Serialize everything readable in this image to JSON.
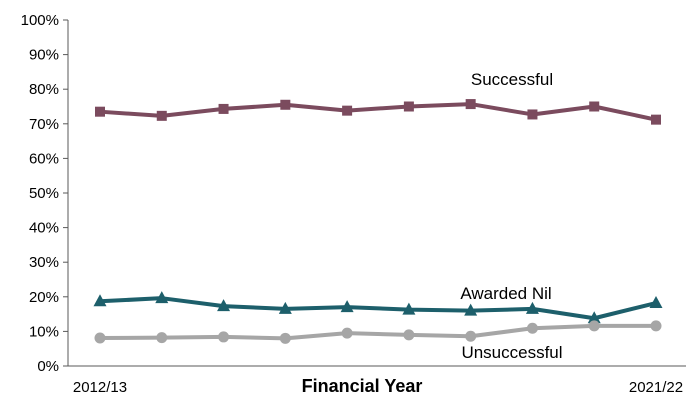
{
  "chart_data": {
    "type": "line",
    "title": "",
    "xlabel": "Financial Year",
    "ylabel": "",
    "x_tick_labels": [
      {
        "index": 0,
        "label": "2012/13"
      },
      {
        "index": 9,
        "label": "2021/22"
      }
    ],
    "y_ticks": [
      "0%",
      "10%",
      "20%",
      "30%",
      "40%",
      "50%",
      "60%",
      "70%",
      "80%",
      "90%",
      "100%"
    ],
    "ylim": [
      0,
      100
    ],
    "grid": false,
    "legend": "none",
    "series": [
      {
        "name": "Successful",
        "color": "#7B4B5E",
        "marker": "square",
        "values": [
          73.5,
          72.3,
          74.3,
          75.5,
          73.8,
          75.0,
          75.7,
          72.7,
          75.0,
          71.2
        ]
      },
      {
        "name": "Awarded Nil",
        "color": "#1D5F6B",
        "marker": "triangle",
        "values": [
          18.7,
          19.6,
          17.3,
          16.5,
          17.0,
          16.3,
          16.0,
          16.5,
          13.8,
          18.2
        ]
      },
      {
        "name": "Unsuccessful",
        "color": "#A6A6A6",
        "marker": "circle",
        "values": [
          8.1,
          8.2,
          8.4,
          8.0,
          9.5,
          9.0,
          8.6,
          10.9,
          11.6,
          11.6
        ]
      }
    ]
  }
}
